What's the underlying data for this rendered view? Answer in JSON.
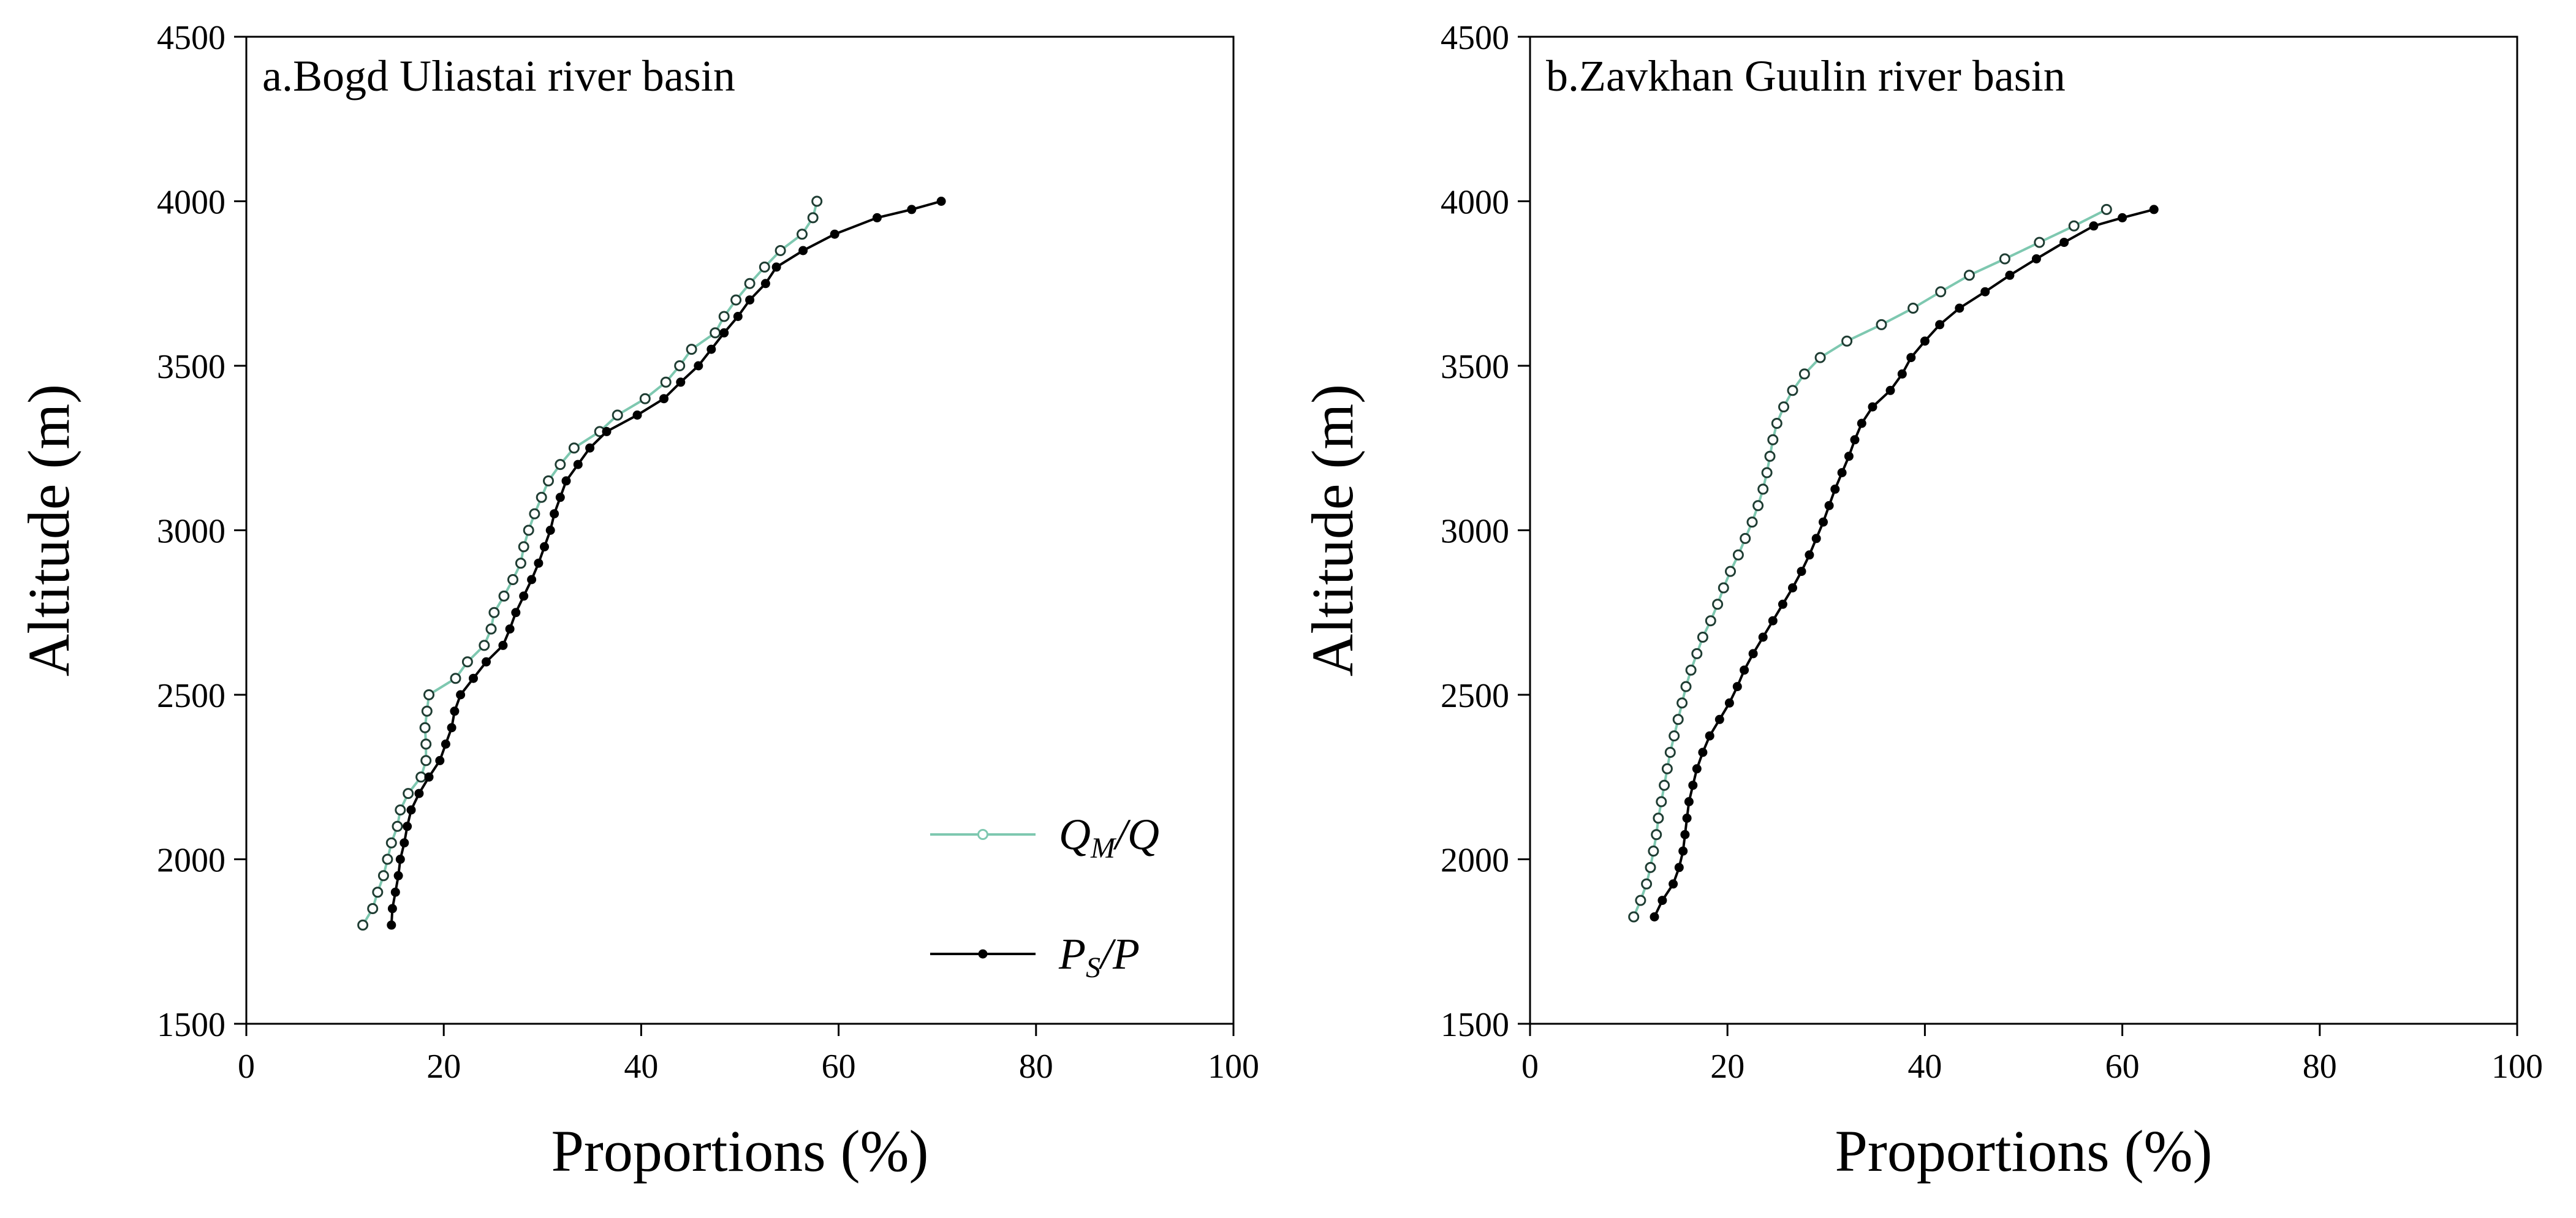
{
  "chart_data": [
    {
      "type": "line",
      "title": "a.Bogd Uliastai river basin",
      "xlabel": "Proportions (%)",
      "ylabel": "Altitude (m)",
      "xlim": [
        0,
        100
      ],
      "ylim": [
        1500,
        4500
      ],
      "xticks": [
        "0",
        "20",
        "40",
        "60",
        "80",
        "100"
      ],
      "yticks": [
        "1500",
        "2000",
        "2500",
        "3000",
        "3500",
        "4000",
        "4500"
      ],
      "grid": false,
      "legend_position": "bottom-right",
      "series": [
        {
          "name": "QM/Q",
          "color": "#7ec8b0",
          "marker": "open-circle",
          "points": [
            [
              11.8,
              1800
            ],
            [
              12.8,
              1850
            ],
            [
              13.3,
              1900
            ],
            [
              13.9,
              1950
            ],
            [
              14.3,
              2000
            ],
            [
              14.7,
              2050
            ],
            [
              15.3,
              2100
            ],
            [
              15.6,
              2150
            ],
            [
              16.4,
              2200
            ],
            [
              17.7,
              2250
            ],
            [
              18.2,
              2300
            ],
            [
              18.2,
              2350
            ],
            [
              18.1,
              2400
            ],
            [
              18.3,
              2450
            ],
            [
              18.5,
              2500
            ],
            [
              21.2,
              2550
            ],
            [
              22.4,
              2600
            ],
            [
              24.1,
              2650
            ],
            [
              24.8,
              2700
            ],
            [
              25.1,
              2750
            ],
            [
              26.1,
              2800
            ],
            [
              27.0,
              2850
            ],
            [
              27.8,
              2900
            ],
            [
              28.1,
              2950
            ],
            [
              28.6,
              3000
            ],
            [
              29.2,
              3050
            ],
            [
              29.9,
              3100
            ],
            [
              30.6,
              3150
            ],
            [
              31.8,
              3200
            ],
            [
              33.2,
              3250
            ],
            [
              35.8,
              3300
            ],
            [
              37.6,
              3350
            ],
            [
              40.4,
              3400
            ],
            [
              42.5,
              3450
            ],
            [
              43.9,
              3500
            ],
            [
              45.1,
              3550
            ],
            [
              47.5,
              3600
            ],
            [
              48.4,
              3650
            ],
            [
              49.6,
              3700
            ],
            [
              51.0,
              3750
            ],
            [
              52.5,
              3800
            ],
            [
              54.1,
              3850
            ],
            [
              56.3,
              3900
            ],
            [
              57.4,
              3950
            ],
            [
              57.8,
              4000
            ]
          ]
        },
        {
          "name": "PS/P",
          "color": "#000000",
          "marker": "filled-circle",
          "points": [
            [
              14.7,
              1800
            ],
            [
              14.8,
              1850
            ],
            [
              15.1,
              1900
            ],
            [
              15.4,
              1950
            ],
            [
              15.6,
              2000
            ],
            [
              16.0,
              2050
            ],
            [
              16.3,
              2100
            ],
            [
              16.7,
              2150
            ],
            [
              17.5,
              2200
            ],
            [
              18.5,
              2250
            ],
            [
              19.6,
              2300
            ],
            [
              20.2,
              2350
            ],
            [
              20.8,
              2400
            ],
            [
              21.1,
              2450
            ],
            [
              21.7,
              2500
            ],
            [
              23.0,
              2550
            ],
            [
              24.3,
              2600
            ],
            [
              26.0,
              2650
            ],
            [
              26.7,
              2700
            ],
            [
              27.3,
              2750
            ],
            [
              28.1,
              2800
            ],
            [
              28.9,
              2850
            ],
            [
              29.6,
              2900
            ],
            [
              30.2,
              2950
            ],
            [
              30.8,
              3000
            ],
            [
              31.2,
              3050
            ],
            [
              31.8,
              3100
            ],
            [
              32.4,
              3150
            ],
            [
              33.6,
              3200
            ],
            [
              34.8,
              3250
            ],
            [
              36.5,
              3300
            ],
            [
              39.6,
              3350
            ],
            [
              42.3,
              3400
            ],
            [
              44.0,
              3450
            ],
            [
              45.8,
              3500
            ],
            [
              47.1,
              3550
            ],
            [
              48.4,
              3600
            ],
            [
              49.8,
              3650
            ],
            [
              51.0,
              3700
            ],
            [
              52.6,
              3750
            ],
            [
              53.7,
              3800
            ],
            [
              56.4,
              3850
            ],
            [
              59.6,
              3900
            ],
            [
              63.9,
              3950
            ],
            [
              67.4,
              3975
            ],
            [
              70.4,
              4000
            ]
          ]
        }
      ]
    },
    {
      "type": "line",
      "title": "b.Zavkhan Guulin river basin",
      "xlabel": "Proportions (%)",
      "ylabel": "Altitude (m)",
      "xlim": [
        0,
        100
      ],
      "ylim": [
        1500,
        4500
      ],
      "xticks": [
        "0",
        "20",
        "40",
        "60",
        "80",
        "100"
      ],
      "yticks": [
        "1500",
        "2000",
        "2500",
        "3000",
        "3500",
        "4000",
        "4500"
      ],
      "grid": false,
      "series": [
        {
          "name": "QM/Q",
          "color": "#7ec8b0",
          "marker": "open-circle",
          "points": [
            [
              10.5,
              1825
            ],
            [
              11.2,
              1875
            ],
            [
              11.8,
              1925
            ],
            [
              12.2,
              1975
            ],
            [
              12.5,
              2025
            ],
            [
              12.8,
              2075
            ],
            [
              13.0,
              2125
            ],
            [
              13.3,
              2175
            ],
            [
              13.6,
              2225
            ],
            [
              13.9,
              2275
            ],
            [
              14.2,
              2325
            ],
            [
              14.6,
              2375
            ],
            [
              15.0,
              2425
            ],
            [
              15.4,
              2475
            ],
            [
              15.8,
              2525
            ],
            [
              16.3,
              2575
            ],
            [
              16.9,
              2625
            ],
            [
              17.5,
              2675
            ],
            [
              18.3,
              2725
            ],
            [
              19.0,
              2775
            ],
            [
              19.6,
              2825
            ],
            [
              20.3,
              2875
            ],
            [
              21.1,
              2925
            ],
            [
              21.8,
              2975
            ],
            [
              22.5,
              3025
            ],
            [
              23.1,
              3075
            ],
            [
              23.6,
              3125
            ],
            [
              24.0,
              3175
            ],
            [
              24.3,
              3225
            ],
            [
              24.6,
              3275
            ],
            [
              25.0,
              3325
            ],
            [
              25.7,
              3375
            ],
            [
              26.6,
              3425
            ],
            [
              27.8,
              3475
            ],
            [
              29.4,
              3525
            ],
            [
              32.1,
              3575
            ],
            [
              35.6,
              3625
            ],
            [
              38.8,
              3675
            ],
            [
              41.6,
              3725
            ],
            [
              44.5,
              3775
            ],
            [
              48.1,
              3825
            ],
            [
              51.6,
              3875
            ],
            [
              55.1,
              3925
            ],
            [
              58.4,
              3975
            ]
          ]
        },
        {
          "name": "PS/P",
          "color": "#000000",
          "marker": "filled-circle",
          "points": [
            [
              12.6,
              1825
            ],
            [
              13.4,
              1875
            ],
            [
              14.5,
              1925
            ],
            [
              15.1,
              1975
            ],
            [
              15.5,
              2025
            ],
            [
              15.7,
              2075
            ],
            [
              15.9,
              2125
            ],
            [
              16.1,
              2175
            ],
            [
              16.5,
              2225
            ],
            [
              16.9,
              2275
            ],
            [
              17.5,
              2325
            ],
            [
              18.2,
              2375
            ],
            [
              19.2,
              2425
            ],
            [
              20.2,
              2475
            ],
            [
              21.0,
              2525
            ],
            [
              21.7,
              2575
            ],
            [
              22.6,
              2625
            ],
            [
              23.6,
              2675
            ],
            [
              24.6,
              2725
            ],
            [
              25.6,
              2775
            ],
            [
              26.6,
              2825
            ],
            [
              27.5,
              2875
            ],
            [
              28.3,
              2925
            ],
            [
              29.0,
              2975
            ],
            [
              29.7,
              3025
            ],
            [
              30.3,
              3075
            ],
            [
              30.9,
              3125
            ],
            [
              31.6,
              3175
            ],
            [
              32.3,
              3225
            ],
            [
              32.9,
              3275
            ],
            [
              33.6,
              3325
            ],
            [
              34.7,
              3375
            ],
            [
              36.5,
              3425
            ],
            [
              37.7,
              3475
            ],
            [
              38.6,
              3525
            ],
            [
              40.0,
              3575
            ],
            [
              41.5,
              3625
            ],
            [
              43.5,
              3675
            ],
            [
              46.1,
              3725
            ],
            [
              48.6,
              3775
            ],
            [
              51.3,
              3825
            ],
            [
              54.1,
              3875
            ],
            [
              57.1,
              3925
            ],
            [
              60.0,
              3950
            ],
            [
              63.2,
              3975
            ]
          ]
        }
      ]
    }
  ],
  "legend": {
    "items": [
      {
        "main": "Q",
        "sub": "M",
        "tail": "/Q"
      },
      {
        "main": "P",
        "sub": "S",
        "tail": "/P"
      }
    ]
  }
}
